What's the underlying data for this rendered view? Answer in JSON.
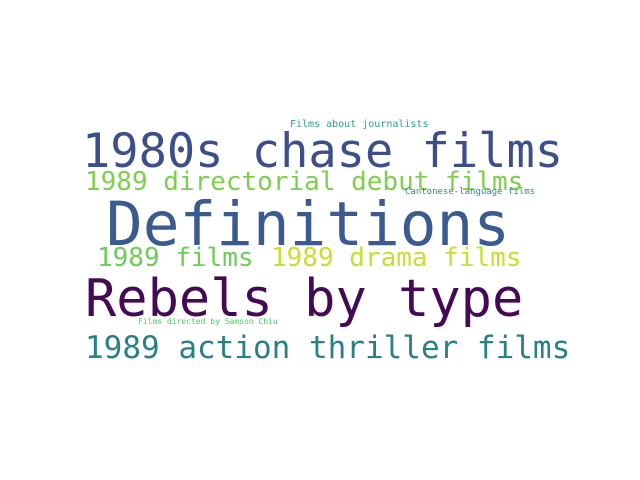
{
  "words": [
    {
      "id": "w-chase",
      "text": "1980s chase films",
      "color": "#3c4f8a"
    },
    {
      "id": "w-definitions",
      "text": "Definitions",
      "color": "#3b5a8f"
    },
    {
      "id": "w-rebels",
      "text": "Rebels by type",
      "color": "#440a55"
    },
    {
      "id": "w-debut",
      "text": "1989 directorial debut films",
      "color": "#7ecf4e"
    },
    {
      "id": "w-films1989",
      "text": "1989 films",
      "color": "#6ccd59"
    },
    {
      "id": "w-drama",
      "text": "1989 drama films",
      "color": "#c8df30"
    },
    {
      "id": "w-action",
      "text": "1989 action thriller films",
      "color": "#2a8088"
    },
    {
      "id": "w-journalists",
      "text": "Films about journalists",
      "color": "#2ca28a"
    },
    {
      "id": "w-cantonese",
      "text": "Cantonese-language films",
      "color": "#2a8f8c"
    },
    {
      "id": "w-chiu",
      "text": "Films directed by Samson Chiu",
      "color": "#55c668"
    }
  ]
}
